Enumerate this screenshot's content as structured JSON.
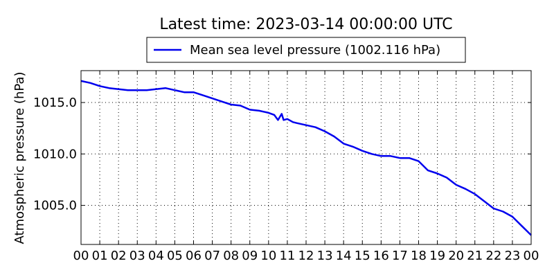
{
  "chart_data": {
    "type": "line",
    "title": "Latest time: 2023-03-14 00:00:00 UTC",
    "ylabel": "Atmospheric pressure (hPa)",
    "xlabel": "",
    "xlim": [
      0,
      24
    ],
    "ylim": [
      1001.2,
      1018.1
    ],
    "x_ticks": [
      0,
      1,
      2,
      3,
      4,
      5,
      6,
      7,
      8,
      9,
      10,
      11,
      12,
      13,
      14,
      15,
      16,
      17,
      18,
      19,
      20,
      21,
      22,
      23,
      24
    ],
    "x_tick_labels": [
      "00",
      "01",
      "02",
      "03",
      "04",
      "05",
      "06",
      "07",
      "08",
      "09",
      "10",
      "11",
      "12",
      "13",
      "14",
      "15",
      "16",
      "17",
      "18",
      "19",
      "20",
      "21",
      "22",
      "23",
      "00"
    ],
    "y_ticks": [
      1005.0,
      1010.0,
      1015.0
    ],
    "y_tick_labels": [
      "1005.0",
      "1010.0",
      "1015.0"
    ],
    "grid": true,
    "legend": {
      "placement": "top-center",
      "entries": [
        "Mean sea level pressure (1002.116 hPa)"
      ]
    },
    "series": [
      {
        "name": "Mean sea level pressure (1002.116 hPa)",
        "color": "#0000ee",
        "x": [
          0,
          0.5,
          1,
          1.5,
          2,
          2.5,
          3,
          3.5,
          4,
          4.5,
          5,
          5.5,
          6,
          6.5,
          7,
          7.5,
          8,
          8.5,
          9,
          9.5,
          10,
          10.3,
          10.5,
          10.7,
          10.8,
          11,
          11.3,
          11.5,
          12,
          12.5,
          13,
          13.5,
          14,
          14.5,
          15,
          15.5,
          16,
          16.5,
          17,
          17.5,
          18,
          18.5,
          19,
          19.5,
          20,
          20.5,
          21,
          21.5,
          22,
          22.5,
          23,
          23.5,
          24
        ],
        "y": [
          1017.1,
          1016.9,
          1016.6,
          1016.4,
          1016.3,
          1016.2,
          1016.2,
          1016.2,
          1016.3,
          1016.4,
          1016.2,
          1016.0,
          1016.0,
          1015.7,
          1015.4,
          1015.1,
          1014.8,
          1014.7,
          1014.3,
          1014.2,
          1014.0,
          1013.8,
          1013.3,
          1013.9,
          1013.3,
          1013.4,
          1013.1,
          1013.0,
          1012.8,
          1012.6,
          1012.2,
          1011.7,
          1011.0,
          1010.7,
          1010.3,
          1010.0,
          1009.8,
          1009.8,
          1009.6,
          1009.6,
          1009.3,
          1008.4,
          1008.1,
          1007.7,
          1007.0,
          1006.6,
          1006.1,
          1005.4,
          1004.7,
          1004.4,
          1003.9,
          1003.0,
          1002.1
        ]
      }
    ]
  }
}
